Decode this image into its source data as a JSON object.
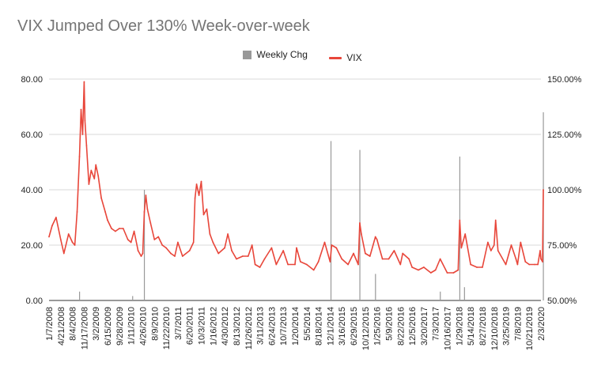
{
  "chart_data": {
    "type": "line",
    "title": "VIX Jumped Over 130% Week-over-week",
    "legend": {
      "position": "top",
      "entries": [
        "Weekly Chg",
        "VIX"
      ]
    },
    "colors": {
      "vix": "#e8463a",
      "weekly_chg": "#999999",
      "grid": "#d9d9d9"
    },
    "left_axis": {
      "ylim": [
        0,
        80
      ],
      "ticks": [
        "0.00",
        "20.00",
        "40.00",
        "60.00",
        "80.00"
      ]
    },
    "right_axis": {
      "ylim": [
        0.5,
        1.5
      ],
      "ticks": [
        "50.00%",
        "75.00%",
        "100.00%",
        "125.00%",
        "150.00%"
      ]
    },
    "xlim": [
      "2008-01-07",
      "2020-02-03"
    ],
    "x_tick_labels": [
      "1/7/2008",
      "4/21/2008",
      "8/4/2008",
      "11/17/2008",
      "3/2/2009",
      "6/15/2009",
      "9/28/2009",
      "1/11/2010",
      "4/26/2010",
      "8/9/2010",
      "11/22/2010",
      "3/7/2011",
      "6/20/2011",
      "10/3/2011",
      "1/16/2012",
      "4/30/2012",
      "8/13/2012",
      "11/26/2012",
      "3/11/2013",
      "6/24/2013",
      "10/7/2013",
      "1/20/2014",
      "5/5/2014",
      "8/18/2014",
      "12/1/2014",
      "3/16/2015",
      "6/29/2015",
      "10/12/2015",
      "1/25/2016",
      "5/9/2016",
      "8/22/2016",
      "12/5/2016",
      "3/20/2017",
      "7/3/2017",
      "10/16/2017",
      "1/29/2018",
      "5/14/2018",
      "8/27/2018",
      "12/10/2018",
      "3/25/2019",
      "7/8/2019",
      "10/21/2019",
      "2/3/2020"
    ],
    "series": [
      {
        "name": "VIX",
        "axis": "left",
        "points": [
          [
            "2008-01-07",
            23
          ],
          [
            "2008-02-04",
            27
          ],
          [
            "2008-03-10",
            30
          ],
          [
            "2008-04-21",
            22
          ],
          [
            "2008-05-19",
            17
          ],
          [
            "2008-06-30",
            24
          ],
          [
            "2008-08-04",
            21
          ],
          [
            "2008-08-25",
            20
          ],
          [
            "2008-09-15",
            32
          ],
          [
            "2008-10-06",
            52
          ],
          [
            "2008-10-20",
            69
          ],
          [
            "2008-11-03",
            60
          ],
          [
            "2008-11-17",
            79
          ],
          [
            "2008-11-24",
            65
          ],
          [
            "2008-12-08",
            56
          ],
          [
            "2008-12-29",
            42
          ],
          [
            "2009-01-19",
            47
          ],
          [
            "2009-02-16",
            44
          ],
          [
            "2009-03-02",
            49
          ],
          [
            "2009-03-23",
            45
          ],
          [
            "2009-04-20",
            37
          ],
          [
            "2009-05-25",
            32
          ],
          [
            "2009-06-15",
            29
          ],
          [
            "2009-07-20",
            26
          ],
          [
            "2009-08-24",
            25
          ],
          [
            "2009-09-28",
            26
          ],
          [
            "2009-11-02",
            26
          ],
          [
            "2009-12-14",
            22
          ],
          [
            "2010-01-11",
            21
          ],
          [
            "2010-02-08",
            25
          ],
          [
            "2010-03-15",
            18
          ],
          [
            "2010-04-12",
            16
          ],
          [
            "2010-04-26",
            17
          ],
          [
            "2010-05-10",
            32
          ],
          [
            "2010-05-24",
            38
          ],
          [
            "2010-06-07",
            33
          ],
          [
            "2010-07-05",
            28
          ],
          [
            "2010-08-09",
            22
          ],
          [
            "2010-09-13",
            23
          ],
          [
            "2010-10-18",
            20
          ],
          [
            "2010-11-22",
            19
          ],
          [
            "2011-01-03",
            17
          ],
          [
            "2011-02-07",
            16
          ],
          [
            "2011-03-07",
            21
          ],
          [
            "2011-04-18",
            16
          ],
          [
            "2011-06-20",
            18
          ],
          [
            "2011-07-25",
            21
          ],
          [
            "2011-08-08",
            37
          ],
          [
            "2011-08-22",
            42
          ],
          [
            "2011-09-12",
            38
          ],
          [
            "2011-10-03",
            43
          ],
          [
            "2011-10-24",
            31
          ],
          [
            "2011-11-21",
            33
          ],
          [
            "2011-12-19",
            24
          ],
          [
            "2012-01-16",
            21
          ],
          [
            "2012-03-05",
            17
          ],
          [
            "2012-04-30",
            19
          ],
          [
            "2012-05-28",
            24
          ],
          [
            "2012-07-02",
            18
          ],
          [
            "2012-08-13",
            15
          ],
          [
            "2012-10-08",
            16
          ],
          [
            "2012-11-26",
            16
          ],
          [
            "2012-12-31",
            20
          ],
          [
            "2013-01-28",
            13
          ],
          [
            "2013-03-11",
            12
          ],
          [
            "2013-04-22",
            15
          ],
          [
            "2013-06-24",
            19
          ],
          [
            "2013-08-05",
            13
          ],
          [
            "2013-10-07",
            18
          ],
          [
            "2013-11-18",
            13
          ],
          [
            "2014-01-20",
            13
          ],
          [
            "2014-02-03",
            19
          ],
          [
            "2014-03-10",
            14
          ],
          [
            "2014-05-05",
            13
          ],
          [
            "2014-07-07",
            11
          ],
          [
            "2014-08-18",
            14
          ],
          [
            "2014-10-13",
            21
          ],
          [
            "2014-12-01",
            14
          ],
          [
            "2014-12-15",
            20
          ],
          [
            "2015-01-26",
            19
          ],
          [
            "2015-03-16",
            15
          ],
          [
            "2015-05-11",
            13
          ],
          [
            "2015-06-29",
            17
          ],
          [
            "2015-08-10",
            13
          ],
          [
            "2015-08-24",
            28
          ],
          [
            "2015-09-07",
            24
          ],
          [
            "2015-10-12",
            17
          ],
          [
            "2015-11-23",
            16
          ],
          [
            "2016-01-11",
            23
          ],
          [
            "2016-01-25",
            22
          ],
          [
            "2016-02-15",
            19
          ],
          [
            "2016-03-14",
            15
          ],
          [
            "2016-05-09",
            15
          ],
          [
            "2016-06-27",
            18
          ],
          [
            "2016-08-22",
            13
          ],
          [
            "2016-09-12",
            17
          ],
          [
            "2016-11-07",
            15
          ],
          [
            "2016-12-05",
            12
          ],
          [
            "2017-01-30",
            11
          ],
          [
            "2017-03-20",
            12
          ],
          [
            "2017-05-22",
            10
          ],
          [
            "2017-07-03",
            11
          ],
          [
            "2017-08-14",
            15
          ],
          [
            "2017-10-16",
            10
          ],
          [
            "2017-12-11",
            10
          ],
          [
            "2018-01-22",
            11
          ],
          [
            "2018-02-05",
            29
          ],
          [
            "2018-02-19",
            19
          ],
          [
            "2018-03-26",
            24
          ],
          [
            "2018-05-14",
            13
          ],
          [
            "2018-07-09",
            12
          ],
          [
            "2018-08-27",
            12
          ],
          [
            "2018-10-15",
            21
          ],
          [
            "2018-11-12",
            18
          ],
          [
            "2018-12-10",
            20
          ],
          [
            "2018-12-24",
            29
          ],
          [
            "2019-01-14",
            18
          ],
          [
            "2019-03-25",
            13
          ],
          [
            "2019-05-13",
            20
          ],
          [
            "2019-06-24",
            15
          ],
          [
            "2019-07-08",
            13
          ],
          [
            "2019-08-05",
            21
          ],
          [
            "2019-09-16",
            14
          ],
          [
            "2019-10-21",
            13
          ],
          [
            "2019-12-09",
            13
          ],
          [
            "2020-01-06",
            13
          ],
          [
            "2020-01-27",
            18
          ],
          [
            "2020-02-03",
            15
          ],
          [
            "2020-02-17",
            14
          ],
          [
            "2020-02-24",
            40
          ]
        ]
      },
      {
        "name": "Weekly Chg",
        "axis": "right",
        "type": "bar",
        "points": [
          [
            "2008-10-06",
            0.54
          ],
          [
            "2010-01-25",
            0.52
          ],
          [
            "2010-05-10",
            1.0
          ],
          [
            "2014-12-08",
            1.22
          ],
          [
            "2015-08-24",
            1.18
          ],
          [
            "2016-01-11",
            0.62
          ],
          [
            "2017-08-14",
            0.54
          ],
          [
            "2018-02-05",
            1.15
          ],
          [
            "2018-03-19",
            0.56
          ],
          [
            "2020-02-24",
            1.35
          ]
        ]
      }
    ]
  }
}
